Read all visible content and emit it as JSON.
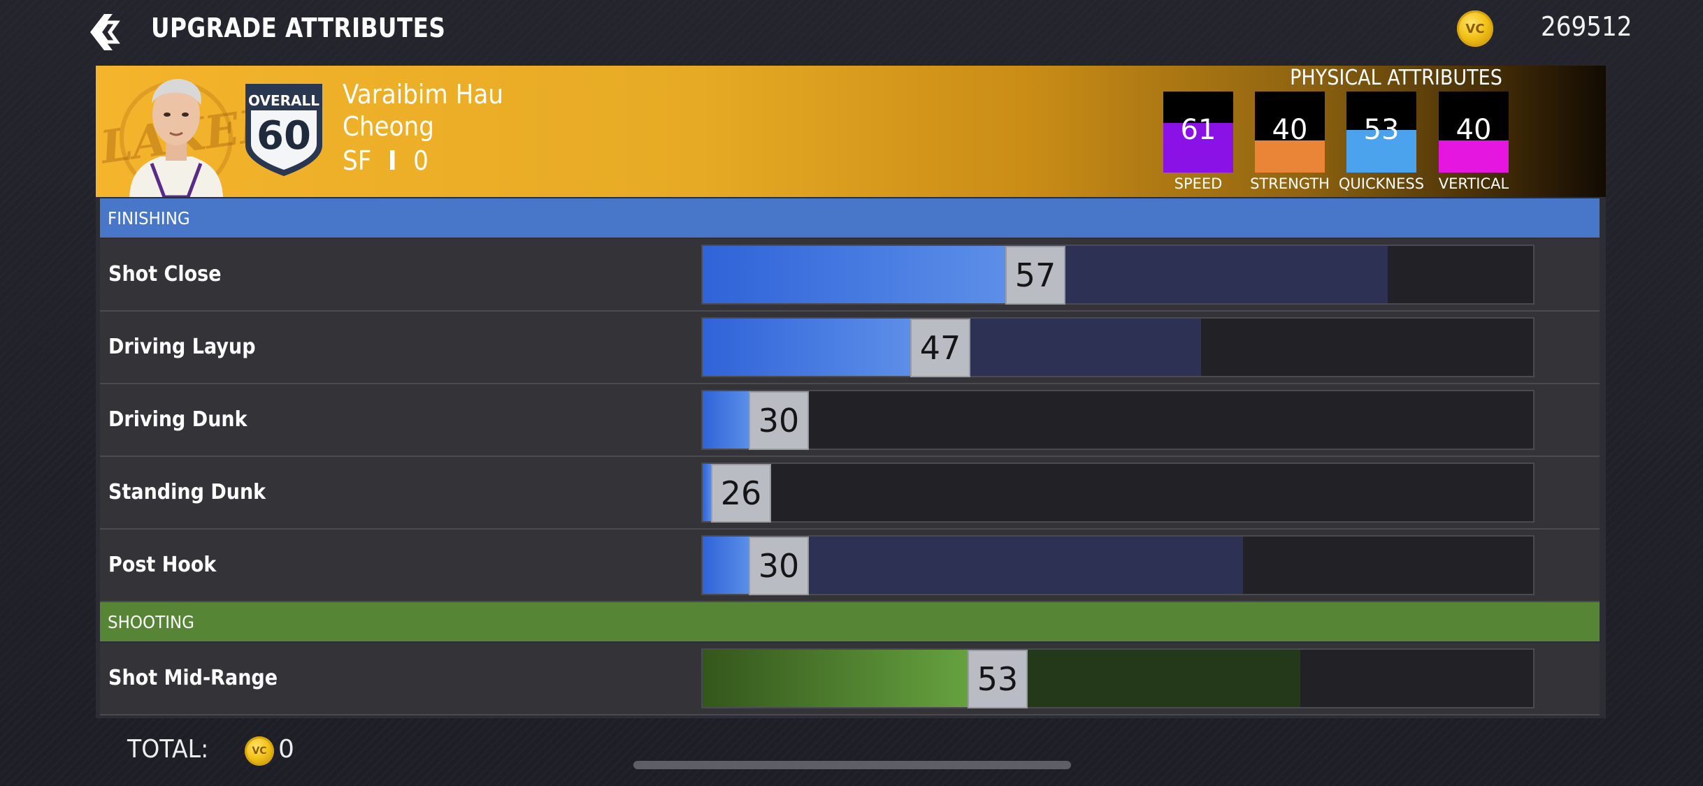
{
  "header": {
    "title": "UPGRADE ATTRIBUTES",
    "currency_icon": "vc-coin-icon",
    "currency_icon_text": "VC",
    "vc_balance": "269512"
  },
  "player": {
    "overall_label": "OVERALL",
    "overall_value": "60",
    "first_name": "Varaibim Hau",
    "last_name": "Cheong",
    "position": "SF",
    "separator": "I",
    "jersey_number": "0",
    "team_logo_text": "LAKERS"
  },
  "physical": {
    "title": "PHYSICAL ATTRIBUTES",
    "stats": [
      {
        "label": "SPEED",
        "value": "61",
        "fraction": 0.61,
        "color": "#8a12e6"
      },
      {
        "label": "STRENGTH",
        "value": "40",
        "fraction": 0.4,
        "color": "#ea8538"
      },
      {
        "label": "QUICKNESS",
        "value": "53",
        "fraction": 0.53,
        "color": "#4aa3ec"
      },
      {
        "label": "VERTICAL",
        "value": "40",
        "fraction": 0.4,
        "color": "#e516e0"
      }
    ]
  },
  "sections": {
    "finishing": {
      "label": "FINISHING",
      "color": "#4876c8"
    },
    "shooting": {
      "label": "SHOOTING",
      "color": "#568536"
    }
  },
  "attributes": [
    {
      "label": "Shot Close",
      "value": "57",
      "current": 57,
      "cap": 0.825,
      "theme": "blue"
    },
    {
      "label": "Driving Layup",
      "value": "47",
      "current": 47,
      "cap": 0.6,
      "theme": "blue"
    },
    {
      "label": "Driving Dunk",
      "value": "30",
      "current": 30,
      "cap": 0.0,
      "theme": "blue"
    },
    {
      "label": "Standing Dunk",
      "value": "26",
      "current": 26,
      "cap": 0.0,
      "theme": "blue"
    },
    {
      "label": "Post Hook",
      "value": "30",
      "current": 30,
      "cap": 0.651,
      "theme": "blue"
    },
    {
      "label": "Shot Mid-Range",
      "value": "53",
      "current": 53,
      "cap": 0.72,
      "theme": "green"
    }
  ],
  "footer": {
    "total_label": "TOTAL:",
    "total_value": "0"
  },
  "colors": {
    "blue_fill_start": "#2f63d8",
    "blue_fill_end": "#5d8fe8",
    "blue_cap": "#2d3255",
    "green_fill_start": "#34561c",
    "green_fill_end": "#66a23f",
    "green_cap": "#24391a"
  }
}
